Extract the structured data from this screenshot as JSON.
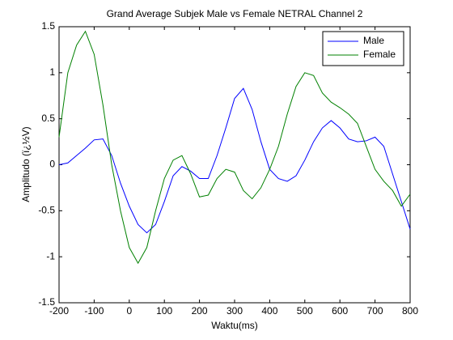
{
  "chart_data": {
    "type": "line",
    "title": "Grand Average Subjek Male vs Female NETRAL Channel 2",
    "xlabel": "Waktu(ms)",
    "ylabel": "Amplitudo (ï¿½V)",
    "x": [
      -200,
      -175,
      -150,
      -125,
      -100,
      -75,
      -50,
      -25,
      0,
      25,
      50,
      75,
      100,
      125,
      150,
      175,
      200,
      225,
      250,
      275,
      300,
      325,
      350,
      375,
      400,
      425,
      450,
      475,
      500,
      525,
      550,
      575,
      600,
      625,
      650,
      675,
      700,
      725,
      750,
      775,
      800
    ],
    "series": [
      {
        "name": "Male",
        "color": "#0000ff",
        "values": [
          0,
          0.02,
          0.1,
          0.18,
          0.27,
          0.28,
          0.1,
          -0.2,
          -0.45,
          -0.65,
          -0.74,
          -0.65,
          -0.4,
          -0.12,
          -0.02,
          -0.07,
          -0.15,
          -0.15,
          0.1,
          0.4,
          0.72,
          0.83,
          0.6,
          0.25,
          -0.05,
          -0.15,
          -0.18,
          -0.12,
          0.05,
          0.25,
          0.4,
          0.48,
          0.4,
          0.28,
          0.25,
          0.26,
          0.3,
          0.2,
          -0.1,
          -0.4,
          -0.7
        ]
      },
      {
        "name": "Female",
        "color": "#008000",
        "values": [
          0.3,
          1.0,
          1.3,
          1.45,
          1.2,
          0.65,
          0.0,
          -0.5,
          -0.9,
          -1.07,
          -0.9,
          -0.5,
          -0.15,
          0.05,
          0.1,
          -0.1,
          -0.35,
          -0.33,
          -0.15,
          -0.05,
          -0.08,
          -0.28,
          -0.37,
          -0.25,
          -0.05,
          0.2,
          0.55,
          0.85,
          1.0,
          0.97,
          0.78,
          0.68,
          0.62,
          0.55,
          0.45,
          0.2,
          -0.05,
          -0.18,
          -0.28,
          -0.45,
          -0.32
        ]
      }
    ],
    "xlim": [
      -200,
      800
    ],
    "xticks": [
      -200,
      -100,
      0,
      100,
      200,
      300,
      400,
      500,
      600,
      700,
      800
    ],
    "ylim": [
      -1.5,
      1.5
    ],
    "yticks": [
      -1.5,
      -1,
      -0.5,
      0,
      0.5,
      1,
      1.5
    ],
    "grid": false,
    "legend": "northeast"
  }
}
